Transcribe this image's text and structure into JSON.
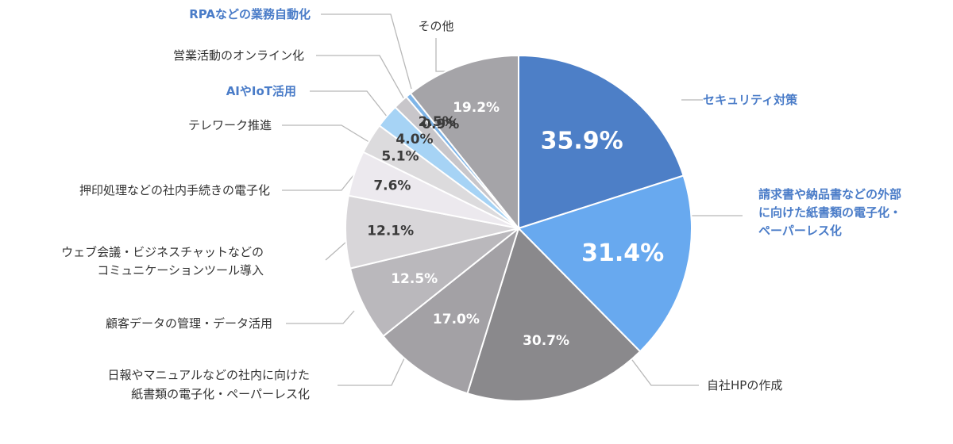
{
  "chart_data": {
    "type": "pie",
    "title": "",
    "slices": [
      {
        "label": "セキュリティ対策",
        "value": 35.9,
        "text": "35.9%",
        "color": "#4d7fc7",
        "text_color": "#ffffff",
        "highlight": true
      },
      {
        "label": "請求書や納品書などの外部に向けた紙書類の電子化・ペーパーレス化",
        "label_lines": [
          "請求書や納品書などの外部",
          "に向けた紙書類の電子化・",
          "ペーパーレス化"
        ],
        "value": 31.4,
        "text": "31.4%",
        "color": "#68a9ef",
        "text_color": "#ffffff",
        "highlight": true
      },
      {
        "label": "自社HPの作成",
        "value": 30.7,
        "text": "30.7%",
        "color": "#8a898c",
        "text_color": "#ffffff",
        "highlight": false
      },
      {
        "label": "日報やマニュアルなどの社内に向けた紙書類の電子化・ペーパーレス化",
        "label_lines": [
          "日報やマニュアルなどの社内に向けた",
          "紙書類の電子化・ペーパーレス化"
        ],
        "value": 17.0,
        "text": "17.0%",
        "color": "#a3a1a5",
        "text_color": "#ffffff",
        "highlight": false
      },
      {
        "label": "顧客データの管理・データ活用",
        "value": 12.5,
        "text": "12.5%",
        "color": "#bab8bc",
        "text_color": "#ffffff",
        "highlight": false
      },
      {
        "label": "ウェブ会議・ビジネスチャットなどのコミュニケーションツール導入",
        "label_lines": [
          "ウェブ会議・ビジネスチャットなどの",
          "コミュニケーションツール導入"
        ],
        "value": 12.1,
        "text": "12.1%",
        "color": "#d8d6d9",
        "text_color": "#3a3a3a",
        "highlight": false
      },
      {
        "label": "押印処理などの社内手続きの電子化",
        "value": 7.6,
        "text": "7.6%",
        "color": "#ece9ee",
        "text_color": "#3a3a3a",
        "highlight": false
      },
      {
        "label": "テレワーク推進",
        "value": 5.1,
        "text": "5.1%",
        "color": "#dcdbdd",
        "text_color": "#3a3a3a",
        "highlight": false
      },
      {
        "label": "AIやIoT活用",
        "value": 4.0,
        "text": "4.0%",
        "color": "#a6d3f5",
        "text_color": "#3a3a3a",
        "highlight": true
      },
      {
        "label": "営業活動のオンライン化",
        "value": 2.5,
        "text": "2.5%",
        "color": "#c8c6ca",
        "text_color": "#3a3a3a",
        "highlight": false
      },
      {
        "label": "RPAなどの業務自動化",
        "value": 0.9,
        "text": "0.9%",
        "color": "#7fb5e8",
        "text_color": "#3a3a3a",
        "highlight": true
      },
      {
        "label": "その他",
        "value": 19.2,
        "text": "19.2%",
        "color": "#a5a4a8",
        "text_color": "#ffffff",
        "highlight": false
      }
    ]
  }
}
